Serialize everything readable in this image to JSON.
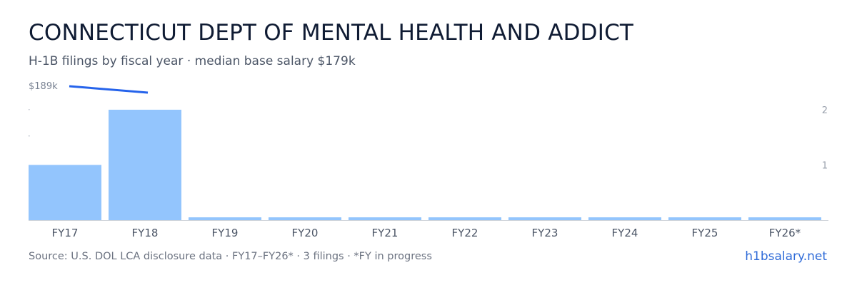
{
  "header": {
    "title": "CONNECTICUT DEPT OF MENTAL HEALTH AND ADDICT",
    "subtitle": "H-1B filings by fiscal year · median base salary $179k"
  },
  "footer": {
    "source": "Source: U.S. DOL LCA disclosure data · FY17–FY26* · 3 filings · *FY in progress",
    "brand": "h1bsalary.net"
  },
  "colors": {
    "bar": "#93c5fd",
    "line": "#2563eb",
    "axis": "#d1d5db"
  },
  "chart_data": {
    "type": "bar",
    "categories": [
      "FY17",
      "FY18",
      "FY19",
      "FY20",
      "FY21",
      "FY22",
      "FY23",
      "FY24",
      "FY25",
      "FY26*"
    ],
    "series": [
      {
        "type": "bar",
        "axis": "right",
        "values": [
          1,
          2,
          0,
          0,
          0,
          0,
          0,
          0,
          0,
          0
        ]
      },
      {
        "type": "line",
        "axis": "left",
        "values": [
          189000,
          179000,
          null,
          null,
          null,
          null,
          null,
          null,
          null,
          null
        ]
      }
    ],
    "right_axis": {
      "ticks": [
        "2",
        "1"
      ],
      "range": [
        0,
        2
      ]
    },
    "left_axis": {
      "ticks": [
        "$189k"
      ]
    },
    "grid": false,
    "legend": "none"
  }
}
